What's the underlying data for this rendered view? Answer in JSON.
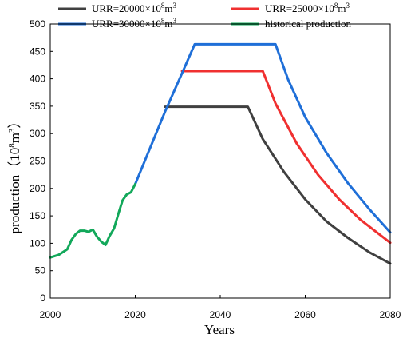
{
  "chart_data": {
    "type": "line",
    "title": "",
    "xlabel": "Years",
    "ylabel_main": "production",
    "ylabel_unit_open": "（10",
    "ylabel_unit_exp1": "8",
    "ylabel_unit_mid": "m",
    "ylabel_unit_exp2": "3",
    "ylabel_unit_close": "）",
    "xlim": [
      2000,
      2080
    ],
    "ylim": [
      0,
      500
    ],
    "xticks": [
      "2000",
      "2020",
      "2040",
      "2060",
      "2080"
    ],
    "yticks": [
      "0",
      "50",
      "100",
      "150",
      "200",
      "250",
      "300",
      "350",
      "400",
      "450",
      "500"
    ],
    "grid": false,
    "legend_position": "top",
    "series": [
      {
        "name": "URR=20000×10⁸m³",
        "legend_base": "URR=20000×10",
        "legend_exp1": "8",
        "legend_mid": "m",
        "legend_exp2": "3",
        "color": "#404040",
        "x": [
          2027,
          2046.5,
          2050,
          2055,
          2060,
          2065,
          2070,
          2075,
          2080
        ],
        "y": [
          349,
          349,
          290,
          230,
          180,
          140,
          110,
          84,
          63
        ]
      },
      {
        "name": "URR=25000×10⁸m³",
        "legend_base": "URR=25000×10",
        "legend_exp1": "8",
        "legend_mid": "m",
        "legend_exp2": "3",
        "color": "#f03030",
        "x": [
          2031,
          2050,
          2053,
          2058,
          2063,
          2068,
          2073,
          2080
        ],
        "y": [
          414,
          414,
          355,
          282,
          225,
          180,
          143,
          101
        ]
      },
      {
        "name": "URR=30000×10⁸m³",
        "legend_base": "URR=30000×10",
        "legend_exp1": "8",
        "legend_mid": "m",
        "legend_exp2": "3",
        "color": "#1f6fd8",
        "x": [
          2020,
          2027,
          2031,
          2034,
          2053,
          2056,
          2060,
          2065,
          2070,
          2075,
          2080
        ],
        "y": [
          208,
          340,
          410,
          463,
          463,
          398,
          330,
          265,
          210,
          163,
          120
        ]
      },
      {
        "name": "historical production",
        "color": "#12a85a",
        "x": [
          2000,
          2002,
          2003,
          2004,
          2005,
          2006,
          2007,
          2008,
          2009,
          2010,
          2011,
          2012,
          2013,
          2014,
          2015,
          2016,
          2017,
          2018,
          2019,
          2020
        ],
        "y": [
          74,
          79,
          84,
          89,
          106,
          117,
          123,
          123,
          121,
          125,
          112,
          103,
          97,
          114,
          127,
          153,
          178,
          189,
          193,
          208
        ]
      }
    ]
  }
}
